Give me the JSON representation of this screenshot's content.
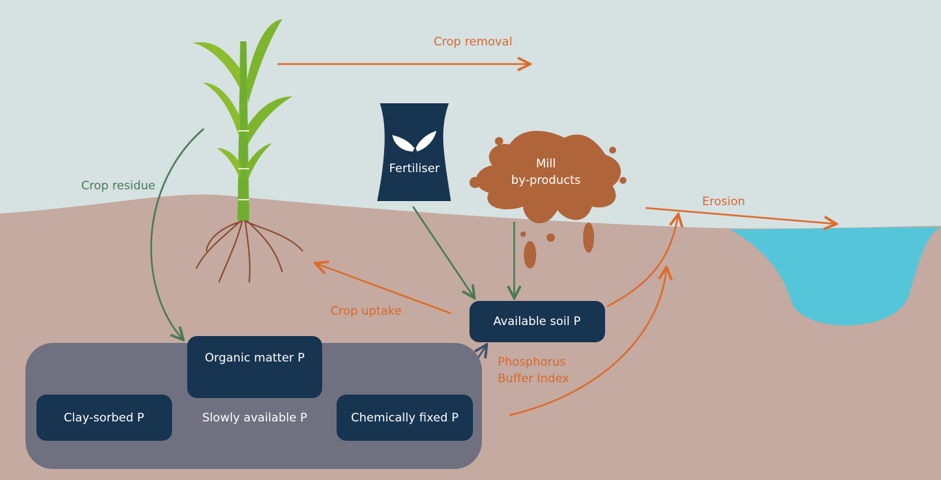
{
  "labels": {
    "crop_removal": "Crop removal",
    "crop_residue": "Crop residue",
    "fertiliser": "Fertiliser",
    "mill_byproducts": [
      "Mill",
      "by-products"
    ],
    "erosion": "Erosion",
    "crop_uptake": "Crop uptake",
    "available_soil_p": "Available soil P",
    "phosphorus_buffer_index": [
      "Phosphorus",
      "Buffer Index"
    ],
    "organic_matter_p": "Organic matter P",
    "clay_sorbed_p": "Clay-sorbed P",
    "slowly_available_p": "Slowly available P",
    "chemically_fixed_p": "Chemically fixed P"
  }
}
